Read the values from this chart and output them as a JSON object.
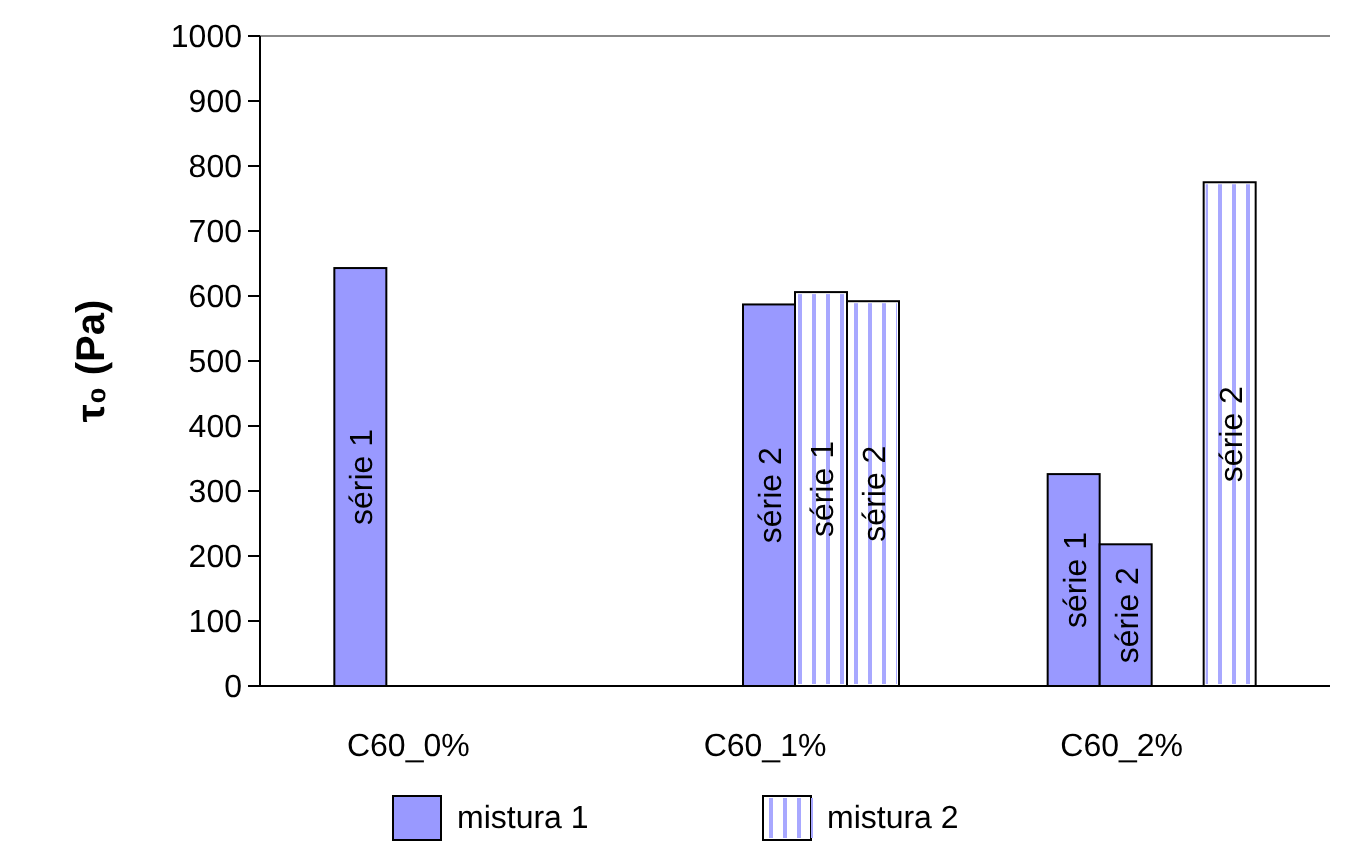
{
  "chart_data": {
    "type": "bar",
    "ylabel": "τ₀ (Pa)",
    "categories": [
      "C60_0%",
      "C60_1%",
      "C60_2%"
    ],
    "series": [
      {
        "name": "mistura 1",
        "color": "#9999ff",
        "values": [
          643,
          null,
          326
        ],
        "value_labels": [
          "série 1",
          null,
          "série 1"
        ]
      },
      {
        "color": "#9999ff",
        "values": [
          null,
          587,
          218
        ],
        "value_labels": [
          null,
          "série 2",
          "série 2"
        ]
      },
      {
        "name": "mistura 2",
        "color": "#ffffff",
        "values": [
          null,
          606,
          null
        ],
        "value_labels": [
          null,
          "série 1",
          null
        ]
      },
      {
        "color": "#ffffff",
        "values": [
          null,
          592,
          775
        ],
        "value_labels": [
          null,
          "série 2",
          "série 2"
        ]
      }
    ],
    "ylim": [
      0,
      1000
    ],
    "yticks": [
      0,
      100,
      200,
      300,
      400,
      500,
      600,
      700,
      800,
      900,
      1000
    ],
    "grid": false,
    "legend": "bottom"
  }
}
